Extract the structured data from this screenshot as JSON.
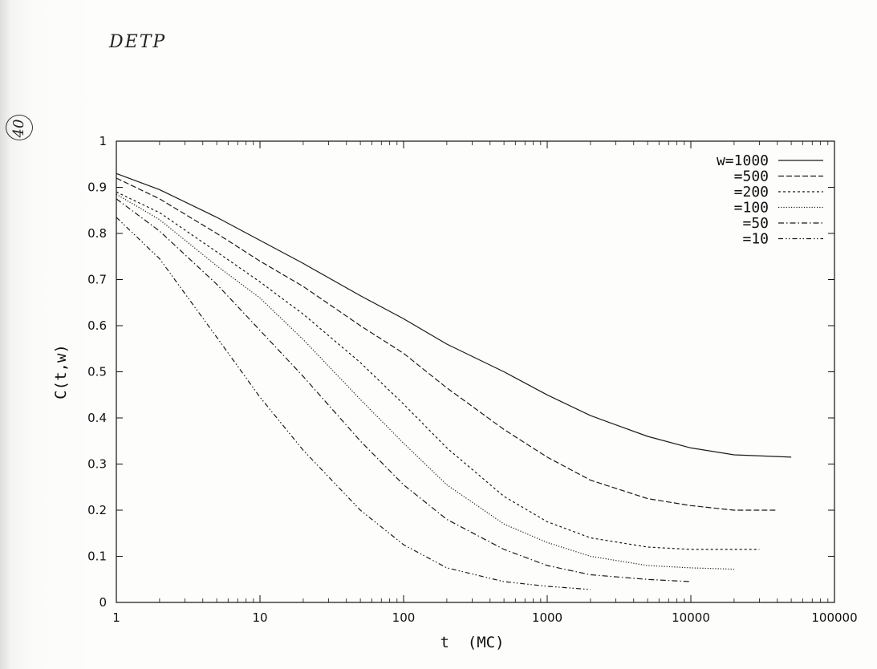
{
  "annotations": {
    "top_left": "DETP",
    "side": "40"
  },
  "chart_data": {
    "type": "line",
    "title": "",
    "xlabel": "t  (MC)",
    "ylabel": "C(t,w)",
    "xscale": "log",
    "xlim": [
      1,
      100000
    ],
    "ylim": [
      0,
      1
    ],
    "x_ticks": [
      1,
      10,
      100,
      1000,
      10000,
      100000
    ],
    "x_tick_labels": [
      "1",
      "10",
      "100",
      "1000",
      "10000",
      "100000"
    ],
    "y_ticks": [
      0,
      0.1,
      0.2,
      0.3,
      0.4,
      0.5,
      0.6,
      0.7,
      0.8,
      0.9,
      1
    ],
    "y_tick_labels": [
      "0",
      "0.1",
      "0.2",
      "0.3",
      "0.4",
      "0.5",
      "0.6",
      "0.7",
      "0.8",
      "0.9",
      "1"
    ],
    "grid": false,
    "legend_position": "top-right",
    "series": [
      {
        "name": "w=1000",
        "dash": "solid",
        "points": [
          [
            1,
            0.93
          ],
          [
            2,
            0.895
          ],
          [
            5,
            0.835
          ],
          [
            10,
            0.785
          ],
          [
            20,
            0.735
          ],
          [
            50,
            0.665
          ],
          [
            100,
            0.615
          ],
          [
            200,
            0.56
          ],
          [
            500,
            0.5
          ],
          [
            1000,
            0.45
          ],
          [
            2000,
            0.405
          ],
          [
            5000,
            0.36
          ],
          [
            10000,
            0.335
          ],
          [
            20000,
            0.32
          ],
          [
            50000,
            0.315
          ]
        ]
      },
      {
        "name": "=500",
        "dash": "dashed",
        "points": [
          [
            1,
            0.92
          ],
          [
            2,
            0.875
          ],
          [
            5,
            0.8
          ],
          [
            10,
            0.74
          ],
          [
            20,
            0.685
          ],
          [
            50,
            0.6
          ],
          [
            100,
            0.54
          ],
          [
            200,
            0.465
          ],
          [
            500,
            0.375
          ],
          [
            1000,
            0.315
          ],
          [
            2000,
            0.265
          ],
          [
            5000,
            0.225
          ],
          [
            10000,
            0.21
          ],
          [
            20000,
            0.2
          ],
          [
            40000,
            0.2
          ]
        ]
      },
      {
        "name": "=200",
        "dash": "short-dashed",
        "points": [
          [
            1,
            0.89
          ],
          [
            2,
            0.845
          ],
          [
            5,
            0.76
          ],
          [
            10,
            0.695
          ],
          [
            20,
            0.625
          ],
          [
            50,
            0.52
          ],
          [
            100,
            0.43
          ],
          [
            200,
            0.335
          ],
          [
            500,
            0.23
          ],
          [
            1000,
            0.175
          ],
          [
            2000,
            0.14
          ],
          [
            5000,
            0.12
          ],
          [
            10000,
            0.115
          ],
          [
            30000,
            0.115
          ]
        ]
      },
      {
        "name": "=100",
        "dash": "dotted",
        "points": [
          [
            1,
            0.885
          ],
          [
            2,
            0.83
          ],
          [
            5,
            0.73
          ],
          [
            10,
            0.66
          ],
          [
            20,
            0.57
          ],
          [
            50,
            0.44
          ],
          [
            100,
            0.345
          ],
          [
            200,
            0.255
          ],
          [
            500,
            0.17
          ],
          [
            1000,
            0.13
          ],
          [
            2000,
            0.1
          ],
          [
            5000,
            0.08
          ],
          [
            10000,
            0.075
          ],
          [
            20000,
            0.072
          ]
        ]
      },
      {
        "name": "=50",
        "dash": "dash-dot",
        "points": [
          [
            1,
            0.875
          ],
          [
            2,
            0.805
          ],
          [
            5,
            0.69
          ],
          [
            10,
            0.59
          ],
          [
            20,
            0.49
          ],
          [
            50,
            0.35
          ],
          [
            100,
            0.255
          ],
          [
            200,
            0.18
          ],
          [
            500,
            0.115
          ],
          [
            1000,
            0.08
          ],
          [
            2000,
            0.06
          ],
          [
            5000,
            0.05
          ],
          [
            10000,
            0.045
          ]
        ]
      },
      {
        "name": "=10",
        "dash": "dash-dot-dot",
        "points": [
          [
            1,
            0.835
          ],
          [
            2,
            0.745
          ],
          [
            5,
            0.575
          ],
          [
            10,
            0.445
          ],
          [
            20,
            0.33
          ],
          [
            50,
            0.2
          ],
          [
            100,
            0.125
          ],
          [
            200,
            0.075
          ],
          [
            500,
            0.045
          ],
          [
            1000,
            0.035
          ],
          [
            2000,
            0.028
          ]
        ]
      }
    ]
  }
}
